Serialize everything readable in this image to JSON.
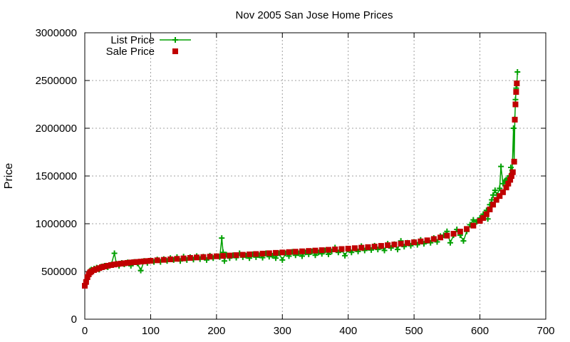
{
  "chart_data": {
    "type": "scatter",
    "title": "Nov 2005 San Jose Home Prices",
    "xlabel": "",
    "ylabel": "Price",
    "xlim": [
      0,
      700
    ],
    "ylim": [
      0,
      3000000
    ],
    "xticks": [
      0,
      100,
      200,
      300,
      400,
      500,
      600,
      700
    ],
    "yticks": [
      0,
      500000,
      1000000,
      1500000,
      2000000,
      2500000,
      3000000
    ],
    "grid": true,
    "legend_position": "top-left",
    "series": [
      {
        "name": "List Price",
        "color": "#00a000",
        "marker": "plus",
        "line": true,
        "points": [
          [
            0,
            360000
          ],
          [
            2,
            400000
          ],
          [
            4,
            450000
          ],
          [
            6,
            490000
          ],
          [
            8,
            510000
          ],
          [
            10,
            520000
          ],
          [
            14,
            530000
          ],
          [
            18,
            540000
          ],
          [
            22,
            520000
          ],
          [
            25,
            550000
          ],
          [
            30,
            560000
          ],
          [
            35,
            545000
          ],
          [
            40,
            570000
          ],
          [
            45,
            690000
          ],
          [
            48,
            580000
          ],
          [
            52,
            560000
          ],
          [
            56,
            590000
          ],
          [
            60,
            575000
          ],
          [
            65,
            595000
          ],
          [
            70,
            560000
          ],
          [
            75,
            600000
          ],
          [
            80,
            585000
          ],
          [
            85,
            510000
          ],
          [
            90,
            610000
          ],
          [
            95,
            590000
          ],
          [
            100,
            615000
          ],
          [
            105,
            600000
          ],
          [
            110,
            625000
          ],
          [
            115,
            600000
          ],
          [
            120,
            630000
          ],
          [
            125,
            610000
          ],
          [
            130,
            640000
          ],
          [
            135,
            620000
          ],
          [
            140,
            650000
          ],
          [
            145,
            610000
          ],
          [
            150,
            655000
          ],
          [
            155,
            620000
          ],
          [
            160,
            650000
          ],
          [
            165,
            625000
          ],
          [
            170,
            660000
          ],
          [
            175,
            630000
          ],
          [
            180,
            655000
          ],
          [
            185,
            620000
          ],
          [
            190,
            665000
          ],
          [
            195,
            640000
          ],
          [
            200,
            660000
          ],
          [
            205,
            650000
          ],
          [
            208,
            850000
          ],
          [
            210,
            700000
          ],
          [
            212,
            610000
          ],
          [
            215,
            675000
          ],
          [
            220,
            640000
          ],
          [
            225,
            670000
          ],
          [
            230,
            645000
          ],
          [
            235,
            690000
          ],
          [
            240,
            650000
          ],
          [
            245,
            665000
          ],
          [
            250,
            640000
          ],
          [
            255,
            680000
          ],
          [
            260,
            650000
          ],
          [
            265,
            670000
          ],
          [
            270,
            645000
          ],
          [
            275,
            690000
          ],
          [
            280,
            655000
          ],
          [
            285,
            665000
          ],
          [
            290,
            640000
          ],
          [
            295,
            690000
          ],
          [
            300,
            620000
          ],
          [
            305,
            690000
          ],
          [
            310,
            660000
          ],
          [
            315,
            705000
          ],
          [
            320,
            670000
          ],
          [
            325,
            690000
          ],
          [
            330,
            660000
          ],
          [
            335,
            700000
          ],
          [
            340,
            680000
          ],
          [
            345,
            710000
          ],
          [
            350,
            670000
          ],
          [
            355,
            700000
          ],
          [
            360,
            685000
          ],
          [
            365,
            720000
          ],
          [
            370,
            680000
          ],
          [
            375,
            710000
          ],
          [
            380,
            750000
          ],
          [
            385,
            700000
          ],
          [
            390,
            730000
          ],
          [
            395,
            665000
          ],
          [
            400,
            730000
          ],
          [
            405,
            700000
          ],
          [
            410,
            740000
          ],
          [
            415,
            710000
          ],
          [
            420,
            765000
          ],
          [
            425,
            720000
          ],
          [
            430,
            750000
          ],
          [
            435,
            725000
          ],
          [
            440,
            770000
          ],
          [
            445,
            730000
          ],
          [
            450,
            760000
          ],
          [
            455,
            720000
          ],
          [
            460,
            790000
          ],
          [
            465,
            745000
          ],
          [
            470,
            785000
          ],
          [
            475,
            730000
          ],
          [
            480,
            820000
          ],
          [
            485,
            760000
          ],
          [
            490,
            800000
          ],
          [
            495,
            770000
          ],
          [
            500,
            810000
          ],
          [
            505,
            780000
          ],
          [
            510,
            830000
          ],
          [
            515,
            790000
          ],
          [
            520,
            820000
          ],
          [
            525,
            800000
          ],
          [
            530,
            850000
          ],
          [
            535,
            810000
          ],
          [
            540,
            870000
          ],
          [
            545,
            880000
          ],
          [
            550,
            920000
          ],
          [
            555,
            800000
          ],
          [
            560,
            880000
          ],
          [
            565,
            940000
          ],
          [
            570,
            880000
          ],
          [
            575,
            820000
          ],
          [
            580,
            920000
          ],
          [
            585,
            990000
          ],
          [
            590,
            1040000
          ],
          [
            595,
            1020000
          ],
          [
            600,
            1060000
          ],
          [
            605,
            1100000
          ],
          [
            610,
            1140000
          ],
          [
            612,
            1050000
          ],
          [
            615,
            1200000
          ],
          [
            618,
            1250000
          ],
          [
            620,
            1300000
          ],
          [
            623,
            1350000
          ],
          [
            626,
            1300000
          ],
          [
            630,
            1370000
          ],
          [
            632,
            1600000
          ],
          [
            635,
            1420000
          ],
          [
            638,
            1450000
          ],
          [
            640,
            1460000
          ],
          [
            643,
            1480000
          ],
          [
            645,
            1500000
          ],
          [
            647,
            1590000
          ],
          [
            649,
            1560000
          ],
          [
            651,
            2000000
          ],
          [
            652,
            1650000
          ],
          [
            653,
            2100000
          ],
          [
            654,
            2300000
          ],
          [
            655,
            2420000
          ],
          [
            656,
            2450000
          ],
          [
            657,
            2590000
          ]
        ]
      },
      {
        "name": "Sale Price",
        "color": "#c00000",
        "marker": "square",
        "line": false,
        "points": [
          [
            0,
            350000
          ],
          [
            2,
            390000
          ],
          [
            4,
            440000
          ],
          [
            6,
            470000
          ],
          [
            8,
            490000
          ],
          [
            10,
            500000
          ],
          [
            14,
            515000
          ],
          [
            18,
            525000
          ],
          [
            22,
            535000
          ],
          [
            26,
            545000
          ],
          [
            30,
            552000
          ],
          [
            35,
            560000
          ],
          [
            40,
            567000
          ],
          [
            45,
            573000
          ],
          [
            50,
            578000
          ],
          [
            55,
            582000
          ],
          [
            60,
            586000
          ],
          [
            65,
            590000
          ],
          [
            70,
            594000
          ],
          [
            75,
            597000
          ],
          [
            80,
            600000
          ],
          [
            85,
            603000
          ],
          [
            90,
            606000
          ],
          [
            95,
            609000
          ],
          [
            100,
            612000
          ],
          [
            110,
            617000
          ],
          [
            120,
            622000
          ],
          [
            130,
            627000
          ],
          [
            140,
            632000
          ],
          [
            150,
            637000
          ],
          [
            160,
            642000
          ],
          [
            170,
            647000
          ],
          [
            180,
            651000
          ],
          [
            190,
            655000
          ],
          [
            200,
            659000
          ],
          [
            210,
            663000
          ],
          [
            220,
            667000
          ],
          [
            230,
            671000
          ],
          [
            240,
            675000
          ],
          [
            250,
            679000
          ],
          [
            260,
            683000
          ],
          [
            270,
            687000
          ],
          [
            280,
            691000
          ],
          [
            290,
            695000
          ],
          [
            300,
            699000
          ],
          [
            310,
            703000
          ],
          [
            320,
            707000
          ],
          [
            330,
            711000
          ],
          [
            340,
            715000
          ],
          [
            350,
            719000
          ],
          [
            360,
            723000
          ],
          [
            370,
            727000
          ],
          [
            380,
            731000
          ],
          [
            390,
            735000
          ],
          [
            400,
            739000
          ],
          [
            410,
            744000
          ],
          [
            420,
            749000
          ],
          [
            430,
            755000
          ],
          [
            440,
            761000
          ],
          [
            450,
            768000
          ],
          [
            460,
            775000
          ],
          [
            470,
            782000
          ],
          [
            480,
            790000
          ],
          [
            490,
            798000
          ],
          [
            500,
            806000
          ],
          [
            510,
            815000
          ],
          [
            520,
            826000
          ],
          [
            530,
            840000
          ],
          [
            540,
            856000
          ],
          [
            550,
            875000
          ],
          [
            560,
            895000
          ],
          [
            570,
            918000
          ],
          [
            580,
            945000
          ],
          [
            590,
            980000
          ],
          [
            600,
            1030000
          ],
          [
            605,
            1060000
          ],
          [
            610,
            1100000
          ],
          [
            615,
            1150000
          ],
          [
            620,
            1200000
          ],
          [
            625,
            1250000
          ],
          [
            630,
            1290000
          ],
          [
            635,
            1330000
          ],
          [
            640,
            1380000
          ],
          [
            643,
            1420000
          ],
          [
            646,
            1460000
          ],
          [
            648,
            1500000
          ],
          [
            650,
            1540000
          ],
          [
            652,
            1650000
          ],
          [
            653,
            2090000
          ],
          [
            654,
            2250000
          ],
          [
            655,
            2380000
          ],
          [
            656,
            2470000
          ]
        ]
      }
    ]
  }
}
